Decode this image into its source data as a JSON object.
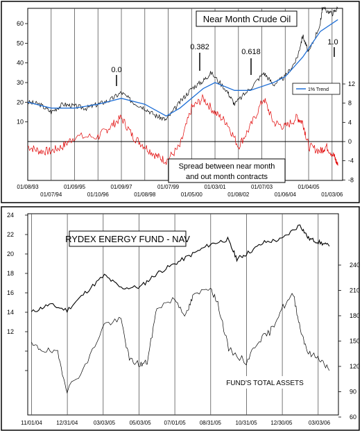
{
  "chart_data": [
    {
      "type": "line",
      "title": "Near Month Crude Oil",
      "annotation_box": "Spread between near month\nand out month contracts",
      "legend": [
        {
          "name": "1% Trend",
          "color": "#1f6fd6"
        }
      ],
      "fib_labels": [
        "0.0",
        "0.382",
        "0.618",
        "1.0"
      ],
      "x_labels_top": [
        "01/08/93",
        "01/09/95",
        "01/09/97",
        "01/07/99",
        "01/03/01",
        "01/07/03",
        "01/04/05"
      ],
      "x_labels_bottom": [
        "01/07/94",
        "01/10/96",
        "01/08/98",
        "01/05/00",
        "01/08/02",
        "01/06/04",
        "01/03/06"
      ],
      "left_axis": {
        "ticks": [
          "10",
          "20",
          "30",
          "40",
          "50",
          "60"
        ],
        "ylim": [
          -10,
          70
        ]
      },
      "right_axis": {
        "ticks": [
          "-8",
          "-4",
          "0",
          "4",
          "8",
          "12"
        ],
        "ylim": [
          -8,
          15
        ]
      },
      "series": [
        {
          "name": "Near Month Crude Oil",
          "color": "#000000",
          "x": [
            "1993-01",
            "1993-07",
            "1994-01",
            "1994-07",
            "1995-01",
            "1995-07",
            "1996-01",
            "1996-07",
            "1997-01",
            "1997-07",
            "1998-01",
            "1998-07",
            "1998-12",
            "1999-07",
            "2000-01",
            "2000-07",
            "2000-11",
            "2001-07",
            "2001-11",
            "2002-07",
            "2003-02",
            "2003-07",
            "2004-01",
            "2004-07",
            "2004-10",
            "2005-01",
            "2005-07",
            "2005-08",
            "2006-01",
            "2006-04"
          ],
          "values": [
            20,
            19,
            15,
            19,
            18,
            17,
            19,
            21,
            25,
            20,
            17,
            13,
            11,
            20,
            27,
            31,
            35,
            26,
            19,
            27,
            35,
            29,
            33,
            42,
            54,
            45,
            60,
            68,
            65,
            68
          ]
        },
        {
          "name": "1% Trend",
          "color": "#1f6fd6",
          "x": [
            "1993-01",
            "1994-01",
            "1995-01",
            "1996-01",
            "1997-01",
            "1998-01",
            "1998-12",
            "1999-07",
            "2000-07",
            "2001-01",
            "2001-11",
            "2002-07",
            "2003-07",
            "2004-01",
            "2004-10",
            "2005-07",
            "2006-04"
          ],
          "values": [
            20,
            17,
            17,
            19,
            22,
            19,
            13,
            17,
            27,
            30,
            26,
            26,
            30,
            33,
            43,
            56,
            62
          ]
        },
        {
          "name": "Spread",
          "color": "#e00000",
          "axis": "right",
          "x": [
            "1993-01",
            "1993-07",
            "1994-01",
            "1994-07",
            "1995-01",
            "1996-01",
            "1996-07",
            "1997-01",
            "1997-07",
            "1998-01",
            "1998-07",
            "1998-12",
            "1999-07",
            "2000-01",
            "2000-07",
            "2001-01",
            "2001-07",
            "2002-01",
            "2002-07",
            "2003-02",
            "2003-07",
            "2004-01",
            "2004-07",
            "2004-10",
            "2005-01",
            "2005-07",
            "2005-10",
            "2006-02",
            "2006-04"
          ],
          "values": [
            -1,
            -2,
            -2,
            -1,
            1,
            1,
            3,
            5,
            1,
            -1,
            -3,
            -4,
            -1,
            7,
            9,
            6,
            4,
            -1,
            3,
            9,
            4,
            3,
            5,
            4,
            -1,
            -2,
            -1,
            -3,
            -5
          ]
        }
      ]
    },
    {
      "type": "line",
      "title": "RYDEX ENERGY FUND - NAV",
      "annotation": "FUND'S TOTAL ASSETS",
      "x_labels": [
        "11/01/04",
        "12/31/04",
        "03/03/05",
        "05/03/05",
        "07/01/05",
        "08/31/05",
        "10/31/05",
        "12/30/05",
        "03/03/06"
      ],
      "left_axis": {
        "ticks": [
          "12",
          "14",
          "16",
          "18",
          "20",
          "22",
          "24"
        ],
        "ylim": [
          8,
          24
        ]
      },
      "right_axis": {
        "ticks": [
          "60",
          "90",
          "120",
          "150",
          "180",
          "210",
          "240"
        ],
        "ylim": [
          60,
          290
        ]
      },
      "series": [
        {
          "name": "RYDEX ENERGY FUND - NAV",
          "color": "#000000",
          "x": [
            "2004-11-01",
            "2004-12-01",
            "2004-12-31",
            "2005-01-31",
            "2005-03-03",
            "2005-04-01",
            "2005-05-03",
            "2005-06-01",
            "2005-07-01",
            "2005-08-01",
            "2005-08-31",
            "2005-09-30",
            "2005-10-15",
            "2005-10-31",
            "2005-12-01",
            "2005-12-30",
            "2006-01-31",
            "2006-02-15",
            "2006-03-03",
            "2006-03-20"
          ],
          "values": [
            14,
            14.8,
            14.2,
            16,
            17.8,
            16.5,
            16.6,
            18,
            19,
            20,
            21,
            21.5,
            19.5,
            20,
            21.2,
            21.5,
            23,
            21.6,
            21.2,
            20.8
          ]
        },
        {
          "name": "FUND'S TOTAL ASSETS",
          "color": "#000000",
          "axis": "right",
          "x": [
            "2004-11-01",
            "2004-11-20",
            "2004-12-15",
            "2004-12-31",
            "2005-02-01",
            "2005-03-03",
            "2005-04-01",
            "2005-04-15",
            "2005-05-03",
            "2005-05-15",
            "2005-06-01",
            "2005-07-01",
            "2005-07-20",
            "2005-08-01",
            "2005-08-31",
            "2005-09-15",
            "2005-10-01",
            "2005-10-31",
            "2005-11-20",
            "2005-12-10",
            "2005-12-30",
            "2006-01-20",
            "2006-02-01",
            "2006-02-15",
            "2006-03-03",
            "2006-03-20"
          ],
          "values": [
            145,
            140,
            135,
            92,
            120,
            170,
            175,
            128,
            122,
            125,
            190,
            200,
            180,
            202,
            215,
            190,
            140,
            125,
            150,
            160,
            188,
            205,
            165,
            135,
            130,
            115
          ]
        }
      ]
    }
  ]
}
